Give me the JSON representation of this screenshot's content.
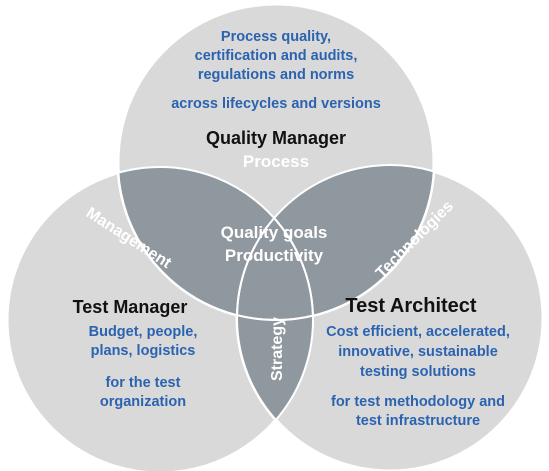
{
  "top_circle": {
    "lines": [
      "Process quality,",
      "certification and audits,",
      "regulations and norms"
    ],
    "extra": "across lifecycles and versions",
    "role": "Quality Manager",
    "label": "Process"
  },
  "left_circle": {
    "role": "Test Manager",
    "lines": [
      "Budget, people,",
      "plans, logistics"
    ],
    "extra_lines": [
      "for the test",
      "organization"
    ],
    "arc_label": "Management"
  },
  "right_circle": {
    "role": "Test Architect",
    "lines": [
      "Cost efficient, accelerated,",
      "innovative, sustainable",
      "testing solutions"
    ],
    "extra_lines": [
      "for test methodology and",
      "test infrastructure"
    ],
    "arc_label": "Technologies"
  },
  "center": {
    "line1": "Quality goals",
    "line2": "Productivity",
    "strategy": "Strategy"
  },
  "colors": {
    "circle_fill": "#d9d9d9",
    "circle_stroke": "#ffffff",
    "overlap_fill": "#8f979f",
    "text_blue": "#2b63b0",
    "text_dark": "#111111"
  }
}
